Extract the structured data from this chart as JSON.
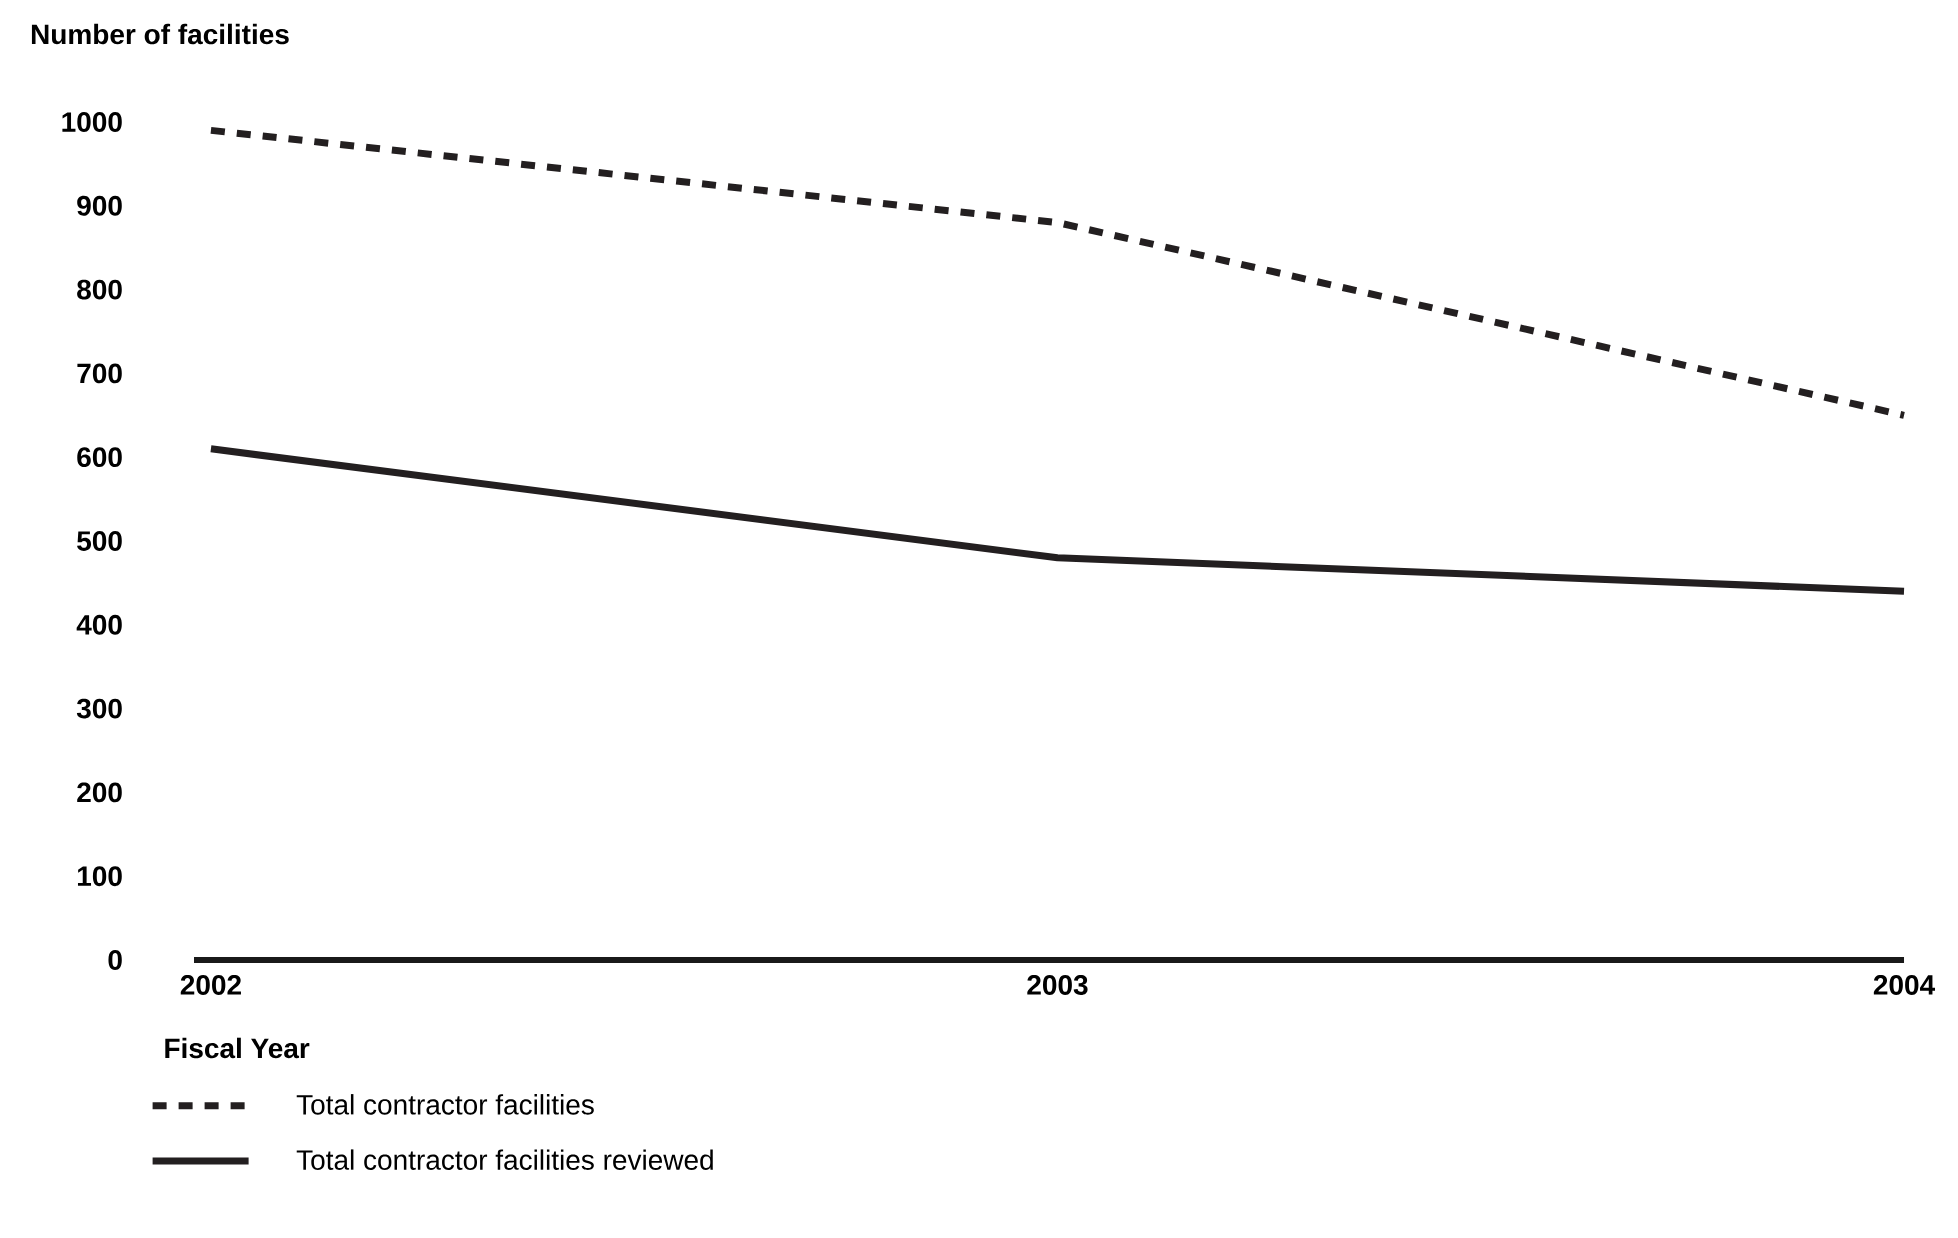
{
  "chart_data": {
    "type": "line",
    "xlabel": "Fiscal Year",
    "ylabel": "Number of facilities",
    "categories": [
      "2002",
      "2003",
      "2004"
    ],
    "ylim": [
      0,
      1000
    ],
    "yticks": [
      0,
      100,
      200,
      300,
      400,
      500,
      600,
      700,
      800,
      900,
      1000
    ],
    "legend": "bottom left",
    "grid": false,
    "series": [
      {
        "name": "Total contractor facilities",
        "color": "#231f20",
        "line_style": "dashed",
        "values": [
          990,
          880,
          650
        ]
      },
      {
        "name": "Total contractor facilities reviewed",
        "color": "#231f20",
        "line_style": "solid",
        "values": [
          610,
          480,
          440
        ]
      }
    ]
  }
}
